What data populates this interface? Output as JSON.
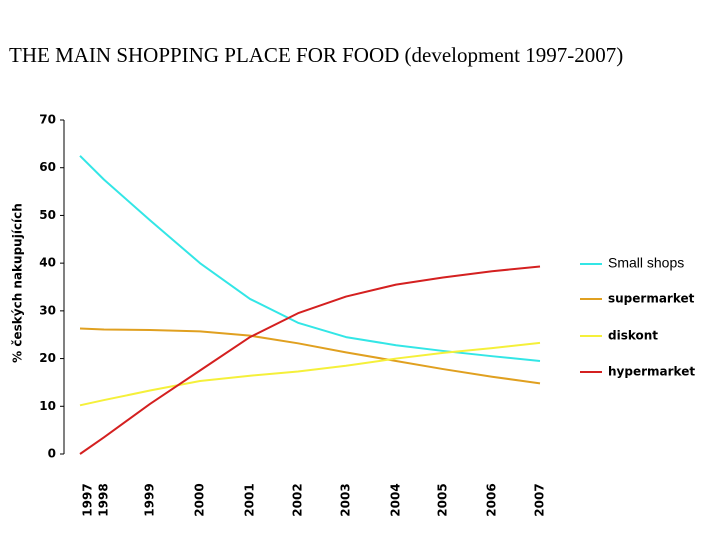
{
  "chart_data": {
    "type": "line",
    "title": "THE MAIN SHOPPING PLACE FOR FOOD (development 1997-2007)",
    "y_label": "% českých nakupujících",
    "categories": [
      "1997",
      "1998",
      "1999",
      "2000",
      "2001",
      "2002",
      "2003",
      "2004",
      "2005",
      "2006",
      "2007"
    ],
    "series": [
      {
        "name": "Small shops",
        "color": "#33e6e6",
        "values": [
          62.5,
          57.5,
          49,
          40,
          32.5,
          27.5,
          24.5,
          22.8,
          21.6,
          20.5,
          19.5
        ]
      },
      {
        "name": "supermarket",
        "color": "#e0a020",
        "values": [
          26.3,
          26.1,
          26,
          25.7,
          24.8,
          23.2,
          21.3,
          19.5,
          17.8,
          16.2,
          14.8
        ]
      },
      {
        "name": "diskont",
        "color": "#f5f03a",
        "values": [
          10.2,
          11.3,
          13.3,
          15.3,
          16.4,
          17.3,
          18.5,
          20,
          21.2,
          22.2,
          23.3
        ]
      },
      {
        "name": "hypermarket",
        "color": "#d42020",
        "values": [
          0,
          3.5,
          10.5,
          17.5,
          24.5,
          29.5,
          33,
          35.5,
          37,
          38.3,
          39.3
        ]
      }
    ],
    "ylim": [
      0,
      70
    ],
    "yticks": [
      0,
      10,
      20,
      30,
      40,
      50,
      60,
      70
    ],
    "grid": false,
    "legend": "right"
  }
}
